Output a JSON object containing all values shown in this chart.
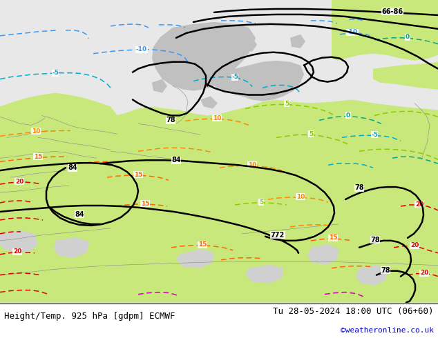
{
  "title_left": "Height/Temp. 925 hPa [gdpm] ECMWF",
  "title_right": "Tu 28-05-2024 18:00 UTC (06+60)",
  "credit": "©weatheronline.co.uk",
  "fig_width": 6.34,
  "fig_height": 4.9,
  "dpi": 100,
  "credit_color": "#0000cc",
  "title_fontsize": 9,
  "credit_fontsize": 8,
  "bg_light_gray": "#e8e8e8",
  "bg_green_light": "#c8e87c",
  "bg_green_mid": "#b8d870",
  "bg_gray_land": "#c0c0c0",
  "border_gray": "#888888"
}
